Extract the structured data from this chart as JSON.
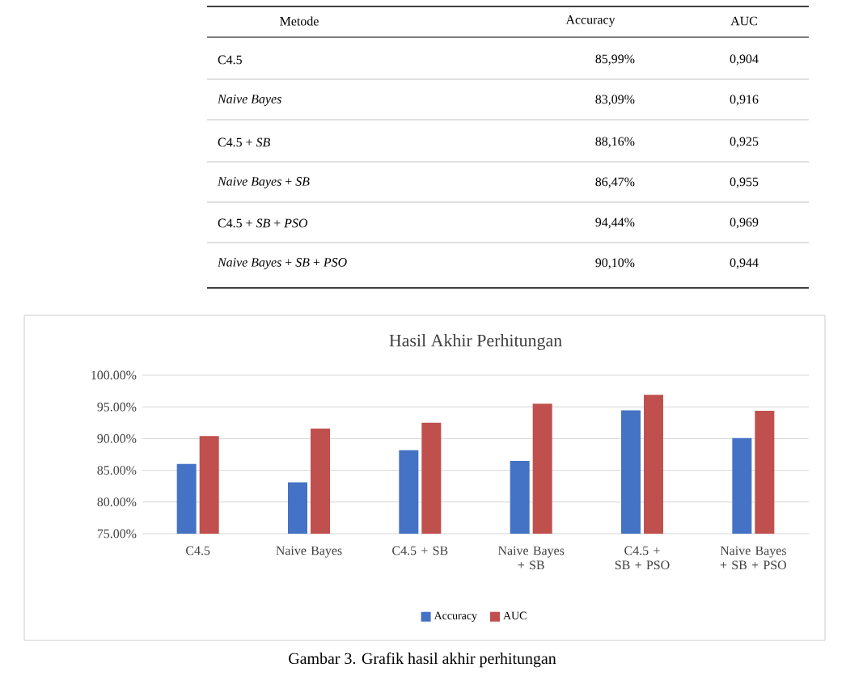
{
  "chart_data": {
    "type": "bar",
    "title": "Hasil Akhir Perhitungan",
    "categories": [
      "C4.5",
      "Naive Bayes",
      "C4.5 + SB",
      "Naive Bayes + SB",
      "C4.5 + SB + PSO",
      "Naive Bayes + SB + PSO"
    ],
    "series": [
      {
        "name": "Accuracy",
        "color": "#4472c4",
        "values": [
          85.99,
          83.09,
          88.16,
          86.47,
          94.44,
          90.1
        ]
      },
      {
        "name": "AUC",
        "color": "#c0504d",
        "values": [
          90.4,
          91.6,
          92.5,
          95.5,
          96.9,
          94.4
        ]
      }
    ],
    "ylim": [
      75,
      100
    ],
    "yticks": [
      {
        "value": 75,
        "label": "75.00%"
      },
      {
        "value": 80,
        "label": "80.00%"
      },
      {
        "value": 85,
        "label": "85.00%"
      },
      {
        "value": 90,
        "label": "90.00%"
      },
      {
        "value": 95,
        "label": "95.00%"
      },
      {
        "value": 100,
        "label": "100.00%"
      }
    ],
    "grid": "y",
    "legend": "bottom",
    "annotations": [
      "Metode",
      "C4.5",
      "*Naive Bayes*",
      "C4.5 + *SB*",
      "*Naive Bayes* + *SB*",
      "C4.5 + *SB* + *PSO*",
      "*Naive Bayes* + *SB* + *PSO*",
      "85,99%",
      "83,09%",
      "88,16%",
      "86,47%",
      "94,44%",
      "90,10%",
      "0,904",
      "0,916",
      "0,925",
      "0,955",
      "0,969",
      "0,944",
      "Gambar 3. Grafik hasil akhir perhitungan"
    ]
  }
}
